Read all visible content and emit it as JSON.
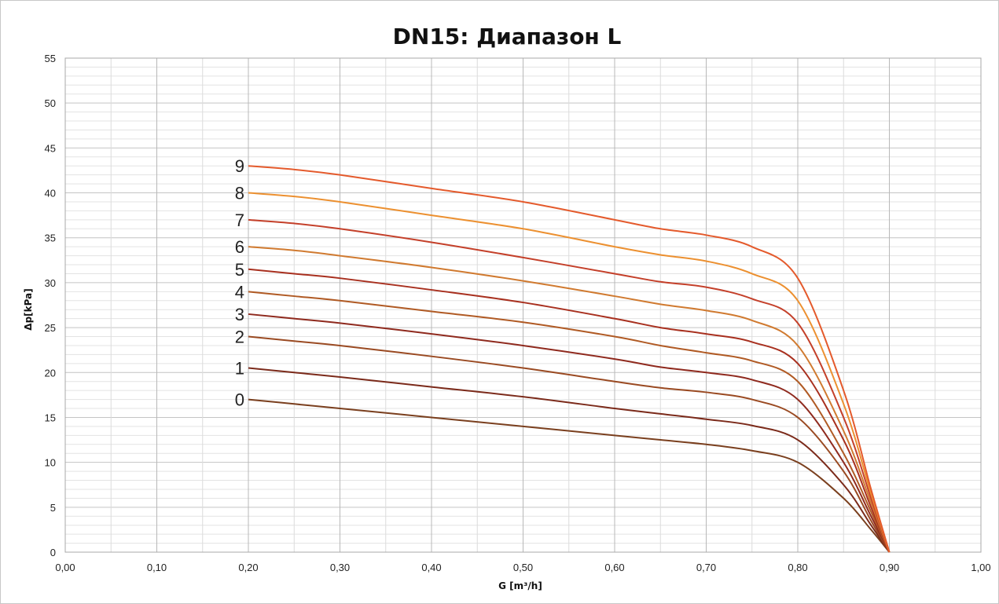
{
  "chart_data": {
    "type": "line",
    "title": "DN15: Диапазон L",
    "xlabel": "G [m³/h]",
    "ylabel": "Δp[kPa]",
    "xlim": [
      0,
      1.0
    ],
    "ylim": [
      0,
      55
    ],
    "x_ticks": [
      "0,00",
      "0,10",
      "0,20",
      "0,30",
      "0,40",
      "0,50",
      "0,60",
      "0,70",
      "0,80",
      "0,90",
      "1,00"
    ],
    "y_ticks": [
      "0",
      "5",
      "10",
      "15",
      "20",
      "25",
      "30",
      "35",
      "40",
      "45",
      "50",
      "55"
    ],
    "grid": true,
    "series": [
      {
        "name": "0",
        "color": "#7a3f1e",
        "points": [
          [
            0.2,
            17.0
          ],
          [
            0.25,
            16.5
          ],
          [
            0.3,
            16.0
          ],
          [
            0.4,
            15.0
          ],
          [
            0.5,
            14.0
          ],
          [
            0.6,
            13.0
          ],
          [
            0.65,
            12.5
          ],
          [
            0.7,
            12.0
          ],
          [
            0.75,
            11.3
          ],
          [
            0.8,
            10.0
          ],
          [
            0.85,
            6.0
          ],
          [
            0.88,
            2.5
          ],
          [
            0.9,
            0
          ]
        ]
      },
      {
        "name": "1",
        "color": "#7b2a1a",
        "points": [
          [
            0.2,
            20.5
          ],
          [
            0.25,
            20.0
          ],
          [
            0.3,
            19.5
          ],
          [
            0.4,
            18.4
          ],
          [
            0.5,
            17.3
          ],
          [
            0.6,
            16.0
          ],
          [
            0.65,
            15.4
          ],
          [
            0.7,
            14.8
          ],
          [
            0.75,
            14.1
          ],
          [
            0.8,
            12.5
          ],
          [
            0.85,
            7.5
          ],
          [
            0.88,
            3.0
          ],
          [
            0.9,
            0
          ]
        ]
      },
      {
        "name": "2",
        "color": "#9a4a22",
        "points": [
          [
            0.2,
            24.0
          ],
          [
            0.25,
            23.5
          ],
          [
            0.3,
            23.0
          ],
          [
            0.4,
            21.8
          ],
          [
            0.5,
            20.5
          ],
          [
            0.6,
            19.0
          ],
          [
            0.65,
            18.3
          ],
          [
            0.7,
            17.8
          ],
          [
            0.75,
            17.0
          ],
          [
            0.8,
            15.0
          ],
          [
            0.85,
            9.0
          ],
          [
            0.88,
            3.5
          ],
          [
            0.9,
            0
          ]
        ]
      },
      {
        "name": "3",
        "color": "#8f2a1e",
        "points": [
          [
            0.2,
            26.5
          ],
          [
            0.25,
            26.0
          ],
          [
            0.3,
            25.5
          ],
          [
            0.4,
            24.3
          ],
          [
            0.5,
            23.0
          ],
          [
            0.6,
            21.5
          ],
          [
            0.65,
            20.6
          ],
          [
            0.7,
            20.0
          ],
          [
            0.75,
            19.2
          ],
          [
            0.8,
            17.0
          ],
          [
            0.85,
            10.0
          ],
          [
            0.88,
            4.0
          ],
          [
            0.9,
            0
          ]
        ]
      },
      {
        "name": "4",
        "color": "#b05a24",
        "points": [
          [
            0.2,
            29.0
          ],
          [
            0.25,
            28.5
          ],
          [
            0.3,
            28.0
          ],
          [
            0.4,
            26.8
          ],
          [
            0.5,
            25.6
          ],
          [
            0.6,
            24.0
          ],
          [
            0.65,
            23.0
          ],
          [
            0.7,
            22.2
          ],
          [
            0.75,
            21.3
          ],
          [
            0.8,
            19.0
          ],
          [
            0.85,
            11.0
          ],
          [
            0.88,
            4.5
          ],
          [
            0.9,
            0
          ]
        ]
      },
      {
        "name": "5",
        "color": "#a8301f",
        "points": [
          [
            0.2,
            31.5
          ],
          [
            0.25,
            31.0
          ],
          [
            0.3,
            30.5
          ],
          [
            0.4,
            29.2
          ],
          [
            0.5,
            27.8
          ],
          [
            0.6,
            26.0
          ],
          [
            0.65,
            25.0
          ],
          [
            0.7,
            24.3
          ],
          [
            0.75,
            23.4
          ],
          [
            0.8,
            21.0
          ],
          [
            0.85,
            12.5
          ],
          [
            0.88,
            5.0
          ],
          [
            0.9,
            0
          ]
        ]
      },
      {
        "name": "6",
        "color": "#d07a30",
        "points": [
          [
            0.2,
            34.0
          ],
          [
            0.25,
            33.6
          ],
          [
            0.3,
            33.0
          ],
          [
            0.4,
            31.7
          ],
          [
            0.5,
            30.2
          ],
          [
            0.6,
            28.5
          ],
          [
            0.65,
            27.6
          ],
          [
            0.7,
            26.9
          ],
          [
            0.75,
            25.8
          ],
          [
            0.8,
            23.0
          ],
          [
            0.85,
            13.5
          ],
          [
            0.88,
            5.5
          ],
          [
            0.9,
            0
          ]
        ]
      },
      {
        "name": "7",
        "color": "#c4402a",
        "points": [
          [
            0.2,
            37.0
          ],
          [
            0.25,
            36.6
          ],
          [
            0.3,
            36.0
          ],
          [
            0.4,
            34.5
          ],
          [
            0.5,
            32.8
          ],
          [
            0.6,
            31.0
          ],
          [
            0.65,
            30.1
          ],
          [
            0.7,
            29.5
          ],
          [
            0.75,
            28.2
          ],
          [
            0.8,
            25.5
          ],
          [
            0.85,
            15.0
          ],
          [
            0.88,
            6.0
          ],
          [
            0.9,
            0
          ]
        ]
      },
      {
        "name": "8",
        "color": "#ec9030",
        "points": [
          [
            0.2,
            40.0
          ],
          [
            0.25,
            39.6
          ],
          [
            0.3,
            39.0
          ],
          [
            0.4,
            37.5
          ],
          [
            0.5,
            36.0
          ],
          [
            0.6,
            34.0
          ],
          [
            0.65,
            33.1
          ],
          [
            0.7,
            32.4
          ],
          [
            0.75,
            31.0
          ],
          [
            0.8,
            28.0
          ],
          [
            0.85,
            16.5
          ],
          [
            0.88,
            6.5
          ],
          [
            0.9,
            0
          ]
        ]
      },
      {
        "name": "9",
        "color": "#e45a2c",
        "points": [
          [
            0.2,
            43.0
          ],
          [
            0.25,
            42.6
          ],
          [
            0.3,
            42.0
          ],
          [
            0.4,
            40.5
          ],
          [
            0.5,
            39.0
          ],
          [
            0.6,
            37.0
          ],
          [
            0.65,
            36.0
          ],
          [
            0.7,
            35.3
          ],
          [
            0.75,
            34.0
          ],
          [
            0.8,
            30.5
          ],
          [
            0.85,
            18.0
          ],
          [
            0.88,
            7.0
          ],
          [
            0.9,
            0
          ]
        ]
      }
    ]
  }
}
